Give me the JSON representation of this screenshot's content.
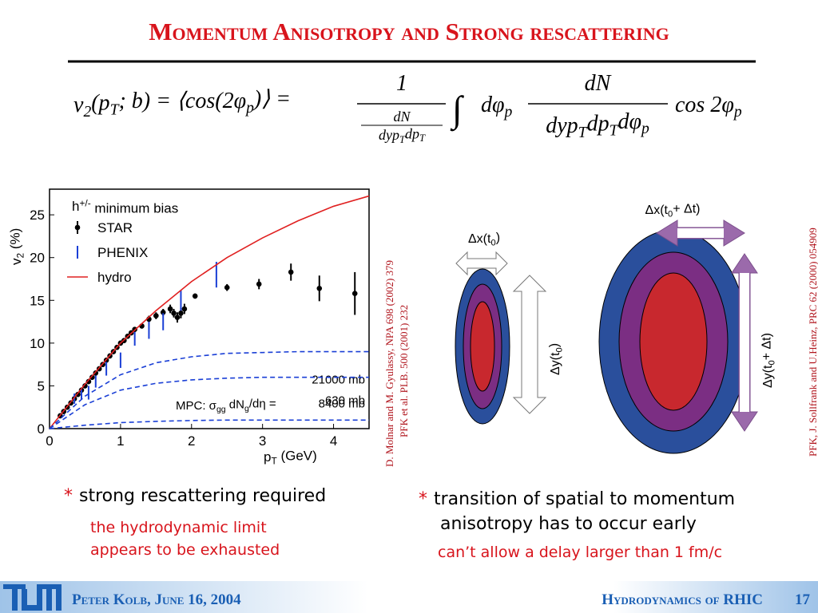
{
  "header": {
    "title": "Momentum Anisotropy and Strong rescattering"
  },
  "formula": {
    "lhs": [
      "v",
      "2",
      "(p",
      "T",
      "; b) = ⟨cos(2φ",
      "p",
      ")⟩ ="
    ],
    "frac1_num": [
      "1"
    ],
    "frac1_den_num": [
      "dN"
    ],
    "frac1_den_den": [
      "dyp",
      "T",
      "dp",
      "T"
    ],
    "integral": [
      "∫"
    ],
    "dphi": [
      "dφ",
      "p"
    ],
    "frac2_num": [
      "dN"
    ],
    "frac2_den": [
      "dyp",
      "T",
      "dp",
      "T",
      "dφ",
      "p"
    ],
    "tail": [
      "cos 2φ",
      "p"
    ]
  },
  "chart_data": {
    "type": "scatter",
    "legend_header": [
      "h",
      "+/-",
      " minimum bias"
    ],
    "x_label": [
      "p",
      "T",
      " (GeV)"
    ],
    "y_label": [
      "v",
      "2",
      " (%)"
    ],
    "mpc_label": [
      "MPC: σ",
      "gg",
      " dN",
      "g",
      "/dη ="
    ],
    "xlim": [
      0,
      4.5
    ],
    "ylim": [
      0,
      28
    ],
    "xticks": [
      0,
      1,
      2,
      3,
      4
    ],
    "yticks": [
      0,
      5,
      10,
      15,
      20,
      25
    ],
    "series": [
      {
        "name": "STAR",
        "color": "#000000",
        "style": "points",
        "x": [
          0.15,
          0.2,
          0.25,
          0.3,
          0.35,
          0.4,
          0.45,
          0.5,
          0.55,
          0.6,
          0.65,
          0.7,
          0.75,
          0.8,
          0.85,
          0.9,
          0.95,
          1.0,
          1.05,
          1.1,
          1.15,
          1.2,
          1.3,
          1.4,
          1.5,
          1.6,
          1.7,
          1.75,
          1.8,
          1.85,
          1.9,
          2.05,
          2.5,
          2.95,
          3.4,
          3.8,
          4.3
        ],
        "values": [
          1.5,
          2,
          2.5,
          3,
          3.5,
          4,
          4.5,
          5,
          5.5,
          6,
          6.5,
          7,
          7.5,
          8,
          8.5,
          9,
          9.5,
          10,
          10.3,
          10.8,
          11.2,
          11.6,
          12,
          12.8,
          13.2,
          13.6,
          14,
          13.5,
          13,
          13.5,
          14,
          15.5,
          16.5,
          16.9,
          18.3,
          16.4,
          15.8
        ],
        "errors": [
          0.3,
          0.3,
          0.3,
          0.3,
          0.3,
          0.3,
          0.3,
          0.3,
          0.3,
          0.3,
          0.3,
          0.3,
          0.3,
          0.3,
          0.3,
          0.3,
          0.3,
          0.3,
          0.3,
          0.3,
          0.3,
          0.3,
          0.3,
          0.4,
          0.4,
          0.4,
          0.5,
          0.5,
          0.6,
          0.6,
          0.6,
          0.3,
          0.4,
          0.6,
          1.0,
          1.5,
          2.5
        ]
      },
      {
        "name": "PHENIX",
        "color": "#1a3fd6",
        "style": "points",
        "x": [
          0.35,
          0.45,
          0.55,
          0.65,
          0.8,
          1.0,
          1.2,
          1.4,
          1.6,
          1.85,
          2.35
        ],
        "values": [
          3.5,
          4,
          4.2,
          5.5,
          7,
          8,
          10.5,
          11.5,
          12.5,
          15,
          18
        ],
        "errors": [
          0.6,
          0.6,
          0.8,
          0.7,
          0.8,
          0.9,
          0.8,
          1,
          1,
          1.2,
          1.5
        ]
      },
      {
        "name": "hydro",
        "color": "#e02020",
        "style": "line",
        "x": [
          0,
          0.5,
          1,
          1.5,
          2,
          2.5,
          3,
          3.5,
          4,
          4.5
        ],
        "values": [
          0,
          5.2,
          10,
          13.8,
          17.2,
          20,
          22.3,
          24.3,
          26,
          27.2
        ]
      },
      {
        "name": "21000 mb",
        "color": "#1a3fd6",
        "style": "dashed",
        "x": [
          0,
          0.5,
          1,
          1.5,
          2,
          2.5,
          3,
          3.5,
          4,
          4.5
        ],
        "values": [
          0,
          3.8,
          6.3,
          7.7,
          8.4,
          8.8,
          8.9,
          9,
          9,
          9
        ]
      },
      {
        "name": "8400 mb",
        "color": "#1a3fd6",
        "style": "dashed",
        "x": [
          0,
          0.5,
          1,
          1.5,
          2,
          2.5,
          3,
          3.5,
          4,
          4.5
        ],
        "values": [
          0,
          2.8,
          4.5,
          5.3,
          5.7,
          5.9,
          6,
          6,
          6,
          6
        ]
      },
      {
        "name": "630 mb",
        "color": "#1a3fd6",
        "style": "dashed",
        "x": [
          0,
          0.5,
          1,
          1.5,
          2,
          2.5,
          3,
          3.5,
          4,
          4.5
        ],
        "values": [
          0,
          0.4,
          0.7,
          0.85,
          0.95,
          1,
          1,
          1,
          1,
          1
        ]
      }
    ]
  },
  "references": {
    "left": [
      "D. Molnar and M. Gyulassy, NPA 698 (2002) 379",
      "PFK et al. PLB. 500 (2001) 232"
    ],
    "right": "PFK, J. Sollfrank and U.Heinz, PRC 62 (2000) 054909"
  },
  "diagram": {
    "dx0": [
      "Δx(t",
      "0",
      ")"
    ],
    "dy0": [
      "Δy(t",
      "0",
      ")"
    ],
    "dx1": [
      "Δx(t",
      "0",
      "+ Δt)"
    ],
    "dy1": [
      "Δy(t",
      "0",
      "+ Δt)"
    ]
  },
  "left_text": {
    "bullet": "*",
    "main": "strong rescattering required",
    "sub": [
      "the hydrodynamic limit",
      "appears to be exhausted"
    ]
  },
  "right_text": {
    "bullet": "*",
    "main": [
      "transition of spatial to momentum",
      "anisotropy has to occur early"
    ],
    "sub": "can’t allow a delay larger than 1 fm/c"
  },
  "footer": {
    "author": "Peter Kolb, June 16, 2004",
    "talk": "Hydrodynamics of RHIC",
    "page": "17"
  }
}
